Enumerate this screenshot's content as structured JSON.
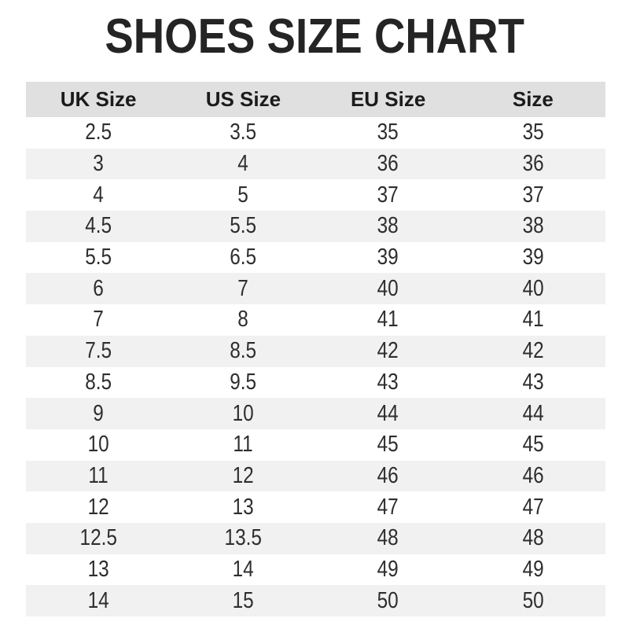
{
  "page": {
    "title": "SHOES SIZE CHART"
  },
  "colors": {
    "header_bg": "#e0e0e0",
    "stripe_bg": "#f1f1f1",
    "row_bg": "#ffffff",
    "title_text": "#242424",
    "header_text": "#1b1b1b",
    "cell_text": "#2e2e2e"
  },
  "chart_data": {
    "type": "table",
    "title": "SHOES SIZE CHART",
    "columns": [
      "UK Size",
      "US Size",
      "EU Size",
      "Size"
    ],
    "rows": [
      [
        "2.5",
        "3.5",
        "35",
        "35"
      ],
      [
        "3",
        "4",
        "36",
        "36"
      ],
      [
        "4",
        "5",
        "37",
        "37"
      ],
      [
        "4.5",
        "5.5",
        "38",
        "38"
      ],
      [
        "5.5",
        "6.5",
        "39",
        "39"
      ],
      [
        "6",
        "7",
        "40",
        "40"
      ],
      [
        "7",
        "8",
        "41",
        "41"
      ],
      [
        "7.5",
        "8.5",
        "42",
        "42"
      ],
      [
        "8.5",
        "9.5",
        "43",
        "43"
      ],
      [
        "9",
        "10",
        "44",
        "44"
      ],
      [
        "10",
        "11",
        "45",
        "45"
      ],
      [
        "11",
        "12",
        "46",
        "46"
      ],
      [
        "12",
        "13",
        "47",
        "47"
      ],
      [
        "12.5",
        "13.5",
        "48",
        "48"
      ],
      [
        "13",
        "14",
        "49",
        "49"
      ],
      [
        "14",
        "15",
        "50",
        "50"
      ]
    ],
    "layout": {
      "grid": false,
      "zebra_striping": true,
      "header_position": "top"
    }
  }
}
